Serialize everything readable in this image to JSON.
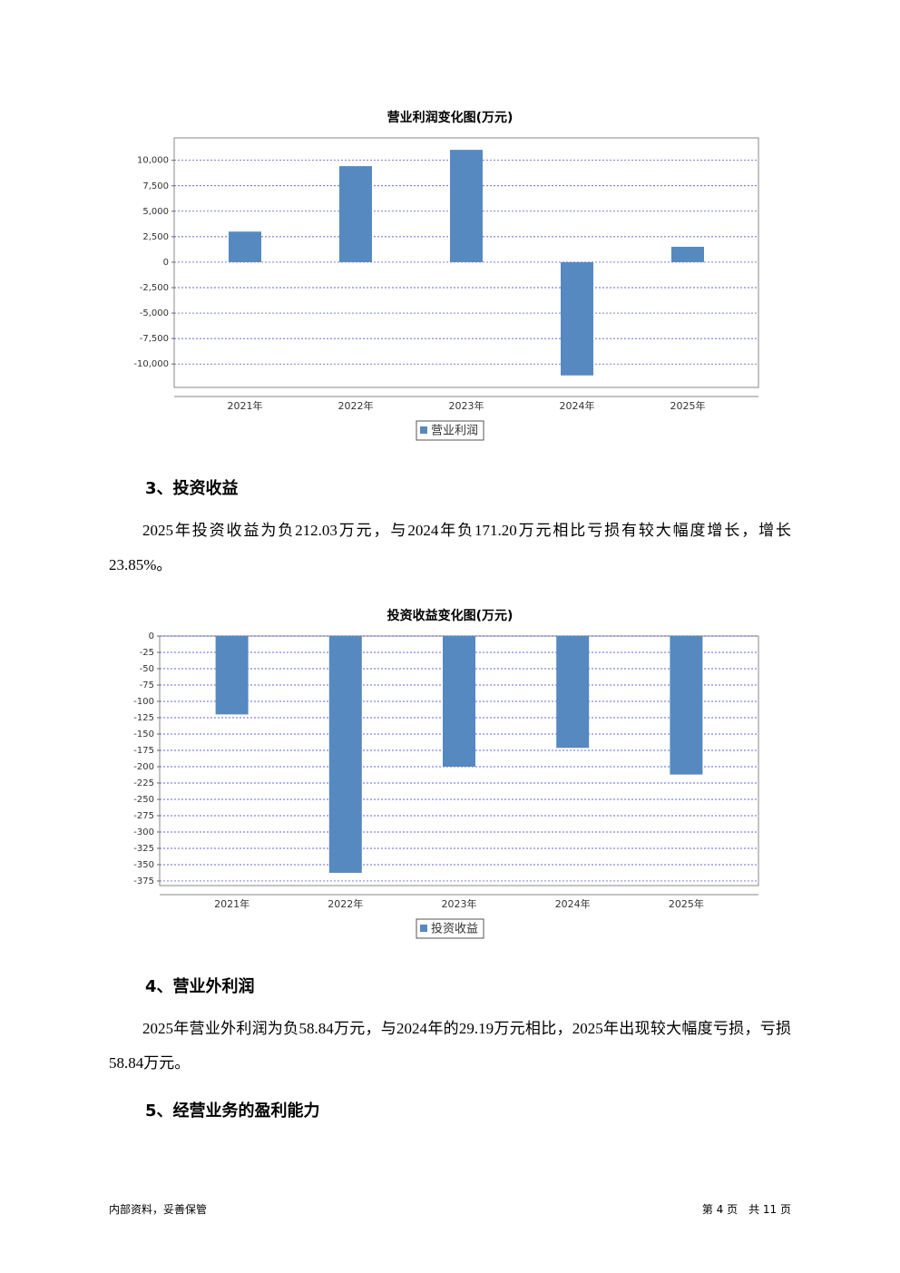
{
  "chart_data": [
    {
      "type": "bar",
      "title": "营业利润变化图(万元)",
      "categories": [
        "2021年",
        "2022年",
        "2023年",
        "2024年",
        "2025年"
      ],
      "series": [
        {
          "name": "营业利润",
          "color": "#5689c0",
          "values": [
            3000,
            9430,
            11030,
            -11120,
            1510
          ]
        }
      ],
      "ylim": [
        -12300,
        12200
      ],
      "yticks": [
        {
          "value": -10000,
          "label": "-10,000"
        },
        {
          "value": -7500,
          "label": "-7,500"
        },
        {
          "value": -5000,
          "label": "-5,000"
        },
        {
          "value": -2500,
          "label": "-2,500"
        },
        0,
        {
          "value": 2500,
          "label": "2,500"
        },
        {
          "value": 5000,
          "label": "5,000"
        },
        {
          "value": 7500,
          "label": "7,500"
        },
        {
          "value": 10000,
          "label": "10,000"
        }
      ],
      "grid": true
    },
    {
      "type": "bar",
      "title": "投资收益变化图(万元)",
      "categories": [
        "2021年",
        "2022年",
        "2023年",
        "2024年",
        "2025年"
      ],
      "series": [
        {
          "name": "投资收益",
          "color": "#5689c0",
          "values": [
            -120,
            -362.5,
            -200,
            -171.2,
            -212.03
          ]
        }
      ],
      "ylim": [
        -382,
        0
      ],
      "yticks": [
        -375,
        -350,
        -325,
        -300,
        -275,
        -250,
        -225,
        -200,
        -175,
        -150,
        -125,
        -100,
        -75,
        -50,
        -25,
        0
      ],
      "grid": true
    }
  ],
  "sections": [
    {
      "heading": "3、投资收益",
      "paragraph": "2025年投资收益为负212.03万元，与2024年负171.20万元相比亏损有较大幅度增长，增长23.85%。"
    },
    {
      "heading": "4、营业外利润",
      "paragraph": "2025年营业外利润为负58.84万元，与2024年的29.19万元相比，2025年出现较大幅度亏损，亏损58.84万元。"
    },
    {
      "heading": "5、经营业务的盈利能力"
    }
  ],
  "footer": {
    "left": "内部资料，妥善保管",
    "right": "第 4 页　共 11 页"
  }
}
